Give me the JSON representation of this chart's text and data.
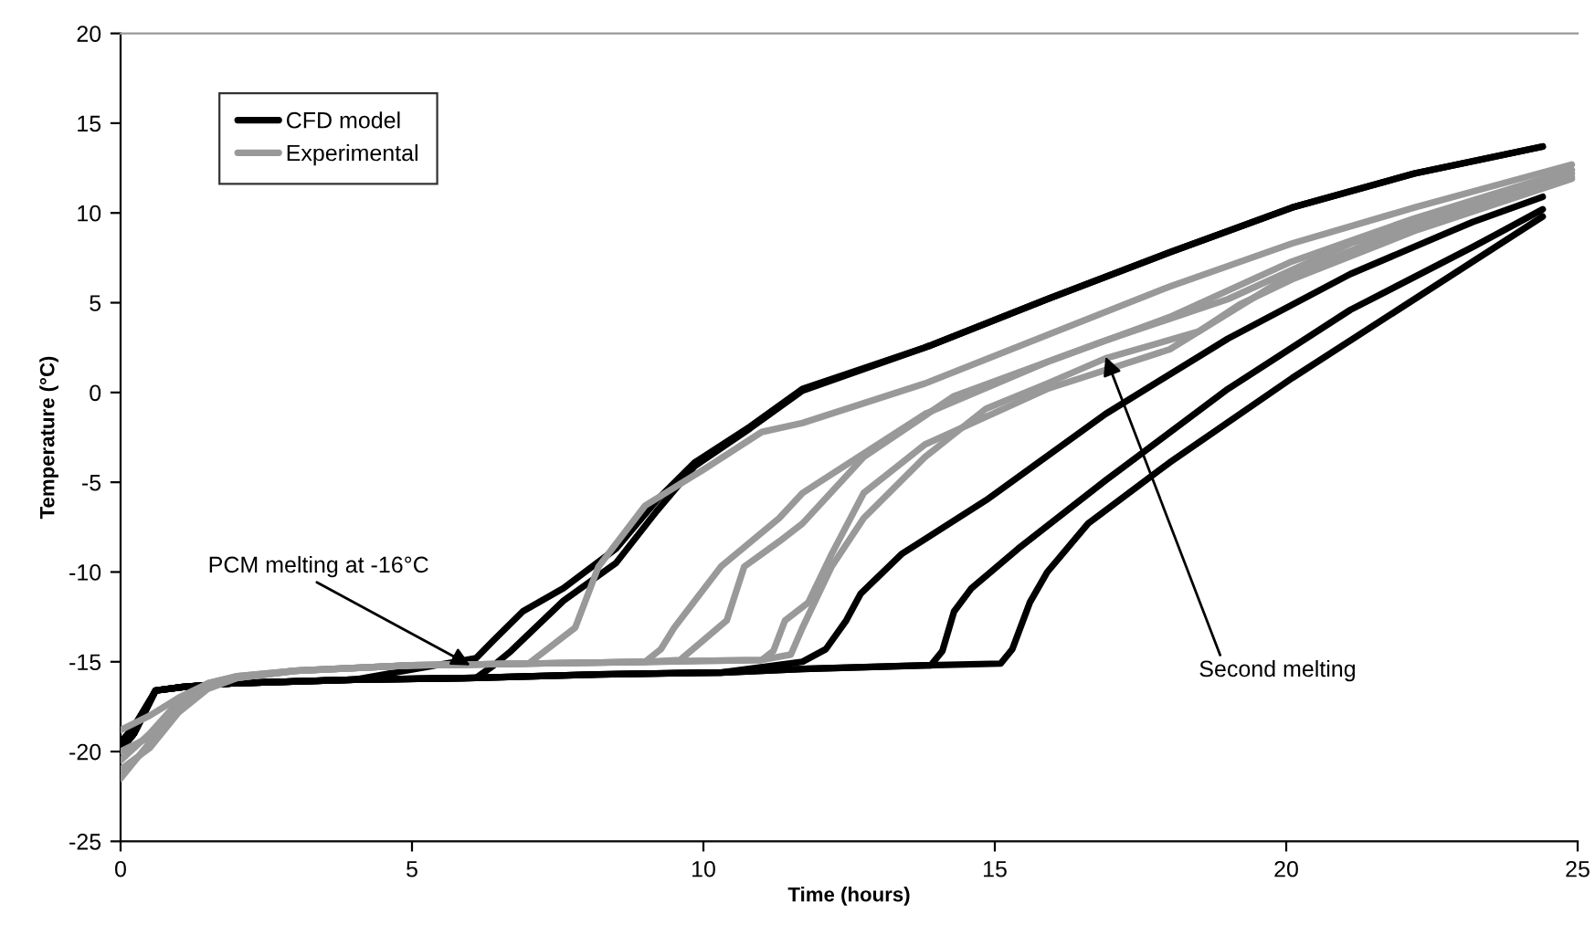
{
  "chart_data": {
    "type": "line",
    "xlabel": "Time (hours)",
    "ylabel": "Temperature (°C)",
    "xlim": [
      0,
      25
    ],
    "ylim": [
      -25,
      20
    ],
    "xticks": [
      0,
      5,
      10,
      15,
      20,
      25
    ],
    "yticks": [
      -25,
      -20,
      -15,
      -10,
      -5,
      0,
      5,
      10,
      15,
      20
    ],
    "grid": false,
    "legend": "top left",
    "marker": "none",
    "line_style": "solid",
    "annotations": [
      {
        "text": "PCM melting at -16°C",
        "x": 6.0,
        "y": -15.2
      },
      {
        "text": "Second melting",
        "x": 16.9,
        "y": 2.0
      }
    ],
    "series": [
      {
        "name": "CFD model",
        "color": "#000000",
        "x": [
          0,
          0.23,
          0.6,
          1.07,
          1.9,
          4.0,
          6.1,
          6.4,
          6.9,
          7.6,
          8.5,
          9.2,
          9.85,
          10.8,
          11.7,
          13.8,
          15.9,
          18.0,
          20.1,
          22.2,
          24.4
        ],
        "values": [
          -19.9,
          -19.0,
          -16.6,
          -16.4,
          -16.2,
          -16.0,
          -14.8,
          -13.8,
          -12.2,
          -10.9,
          -8.7,
          -6.0,
          -3.9,
          -1.9,
          0.2,
          2.5,
          5.2,
          7.8,
          10.3,
          12.2,
          13.7
        ]
      },
      {
        "color": "#000000",
        "x": [
          0,
          0.23,
          0.6,
          1.07,
          1.9,
          4.0,
          6.1,
          6.4,
          6.7,
          7.6,
          8.5,
          9.2,
          9.85,
          10.8,
          11.7,
          13.8,
          15.9,
          18.0,
          20.1,
          22.2,
          24.4
        ],
        "values": [
          -19.5,
          -18.6,
          -16.6,
          -16.4,
          -16.2,
          -16.0,
          -15.9,
          -15.2,
          -14.4,
          -11.6,
          -9.5,
          -6.6,
          -4.1,
          -2.0,
          0.1,
          2.5,
          5.2,
          7.8,
          10.3,
          12.2,
          13.7
        ]
      },
      {
        "color": "#000000",
        "x": [
          0,
          0.23,
          0.6,
          1.07,
          1.9,
          4.0,
          6.1,
          8.2,
          10.3,
          11.7,
          12.1,
          12.45,
          12.7,
          13.4,
          14.85,
          16.9,
          19.0,
          21.1,
          23.2,
          24.4
        ],
        "values": [
          -19.9,
          -19.0,
          -16.6,
          -16.4,
          -16.2,
          -16.0,
          -15.9,
          -15.7,
          -15.6,
          -15.0,
          -14.3,
          -12.7,
          -11.2,
          -9.0,
          -6.0,
          -1.2,
          3.0,
          6.6,
          9.5,
          10.9
        ]
      },
      {
        "color": "#000000",
        "x": [
          0,
          0.23,
          0.6,
          1.07,
          1.9,
          4.0,
          6.1,
          8.2,
          10.3,
          11.7,
          13.9,
          14.1,
          14.3,
          14.6,
          15.4,
          16.9,
          19.0,
          21.1,
          23.2,
          24.4
        ],
        "values": [
          -19.9,
          -19.0,
          -16.6,
          -16.4,
          -16.2,
          -16.0,
          -15.9,
          -15.7,
          -15.6,
          -15.4,
          -15.2,
          -14.4,
          -12.2,
          -10.9,
          -8.7,
          -4.9,
          0.2,
          4.6,
          8.1,
          10.2
        ]
      },
      {
        "color": "#000000",
        "x": [
          0,
          0.23,
          0.6,
          1.07,
          1.9,
          4.0,
          6.1,
          8.2,
          10.3,
          11.7,
          13.8,
          15.1,
          15.3,
          15.6,
          15.9,
          16.6,
          18.0,
          20.1,
          22.2,
          24.4
        ],
        "values": [
          -19.9,
          -19.0,
          -16.6,
          -16.4,
          -16.2,
          -16.0,
          -15.9,
          -15.7,
          -15.6,
          -15.4,
          -15.2,
          -15.1,
          -14.3,
          -11.7,
          -10.0,
          -7.3,
          -3.9,
          0.8,
          5.2,
          9.8
        ]
      },
      {
        "name": "Experimental",
        "color": "#999999",
        "x": [
          0,
          0.5,
          1.0,
          1.5,
          2.0,
          3.0,
          5.0,
          7.0,
          7.8,
          8.2,
          9.0,
          10.0,
          11.0,
          11.7,
          13.8,
          15.9,
          18.0,
          20.1,
          22.2,
          24.9
        ],
        "values": [
          -21.5,
          -19.5,
          -17.5,
          -16.3,
          -15.9,
          -15.5,
          -15.2,
          -15.1,
          -13.1,
          -9.7,
          -6.3,
          -4.3,
          -2.2,
          -1.7,
          0.5,
          3.2,
          5.9,
          8.3,
          10.3,
          12.7
        ]
      },
      {
        "color": "#999999",
        "x": [
          0,
          0.5,
          1.0,
          1.5,
          2.0,
          3.0,
          5.0,
          7.0,
          9.0,
          9.27,
          9.5,
          10.3,
          11.3,
          11.7,
          13.8,
          15.9,
          18.0,
          20.1,
          22.2,
          24.9
        ],
        "values": [
          -20.5,
          -19.0,
          -17.2,
          -16.2,
          -15.8,
          -15.5,
          -15.2,
          -15.1,
          -15.0,
          -14.3,
          -13.1,
          -9.7,
          -7.0,
          -5.6,
          -1.2,
          1.7,
          4.2,
          7.3,
          9.7,
          12.4
        ]
      },
      {
        "color": "#999999",
        "x": [
          0,
          0.5,
          1.0,
          1.5,
          2.0,
          3.0,
          5.0,
          7.0,
          9.0,
          9.6,
          10.4,
          10.7,
          11.3,
          11.7,
          12.75,
          14.3,
          16.9,
          19.0,
          21.1,
          24.9
        ],
        "values": [
          -21.0,
          -19.8,
          -17.8,
          -16.5,
          -15.9,
          -15.5,
          -15.2,
          -15.1,
          -15.0,
          -14.9,
          -12.7,
          -9.7,
          -8.3,
          -7.3,
          -3.6,
          -0.2,
          2.9,
          5.2,
          8.3,
          12.0
        ]
      },
      {
        "color": "#999999",
        "x": [
          0,
          0.5,
          1.0,
          1.5,
          2.0,
          3.0,
          5.0,
          7.0,
          9.0,
          11.0,
          11.2,
          11.4,
          11.8,
          12.2,
          12.75,
          13.8,
          15.9,
          18.0,
          20.1,
          22.2,
          24.9
        ],
        "values": [
          -18.8,
          -18.0,
          -17.0,
          -16.2,
          -15.8,
          -15.5,
          -15.2,
          -15.1,
          -15.0,
          -14.9,
          -14.4,
          -12.7,
          -11.7,
          -9.0,
          -5.6,
          -2.9,
          0.2,
          2.4,
          6.6,
          9.3,
          12.2
        ]
      },
      {
        "color": "#999999",
        "x": [
          0,
          0.5,
          1.0,
          1.5,
          2.0,
          3.0,
          5.0,
          7.0,
          9.0,
          11.0,
          11.5,
          11.7,
          12.2,
          12.75,
          13.8,
          14.85,
          15.9,
          16.9,
          18.5,
          19.2,
          20.1,
          22.2,
          24.9
        ],
        "values": [
          -20.0,
          -19.2,
          -17.4,
          -16.3,
          -15.9,
          -15.5,
          -15.2,
          -15.1,
          -15.0,
          -14.9,
          -14.6,
          -13.1,
          -9.7,
          -7.0,
          -3.6,
          -0.9,
          0.5,
          1.9,
          3.4,
          4.9,
          6.3,
          9.0,
          11.9
        ]
      }
    ]
  }
}
